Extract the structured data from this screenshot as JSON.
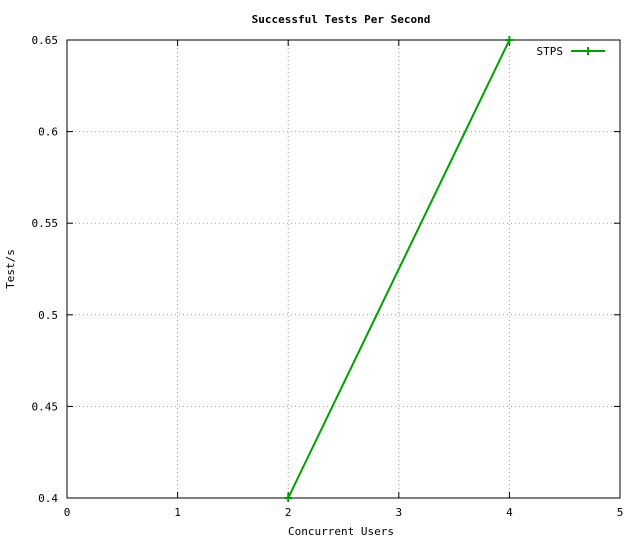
{
  "chart_data": {
    "type": "line",
    "title": "Successful Tests Per Second",
    "xlabel": "Concurrent Users",
    "ylabel": "Test/s",
    "xlim": [
      0,
      5
    ],
    "ylim": [
      0.4,
      0.65
    ],
    "x_ticks": [
      0,
      1,
      2,
      3,
      4,
      5
    ],
    "x_tick_labels": [
      "0",
      "1",
      "2",
      "3",
      "4",
      "5"
    ],
    "y_ticks": [
      0.4,
      0.45,
      0.5,
      0.55,
      0.6,
      0.65
    ],
    "y_tick_labels": [
      "0.4",
      "0.45",
      "0.5",
      "0.55",
      "0.6",
      "0.65"
    ],
    "grid": true,
    "legend_position": "top-right",
    "series": [
      {
        "name": "STPS",
        "color": "#00a000",
        "marker": "plus",
        "x": [
          2,
          4
        ],
        "y": [
          0.4,
          0.65
        ]
      }
    ]
  }
}
